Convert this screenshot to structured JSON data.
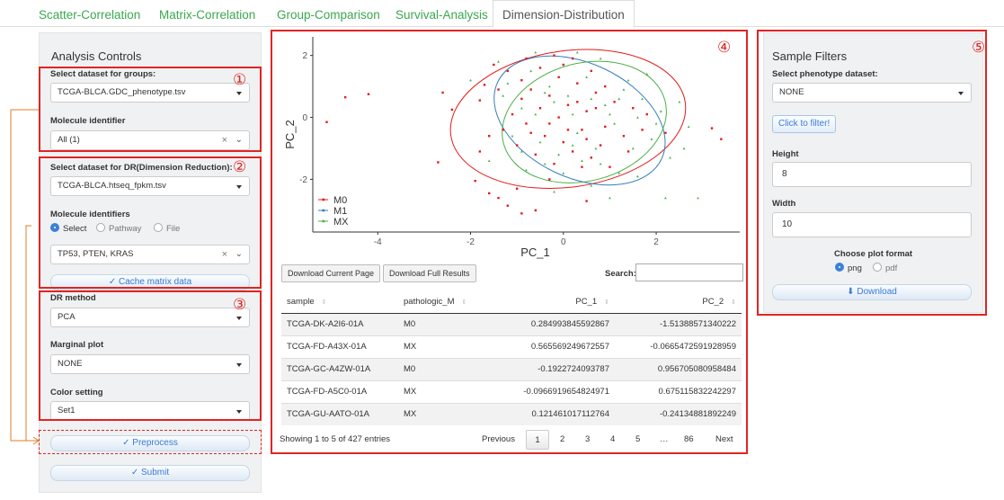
{
  "tabs": [
    {
      "label": "Scatter-Correlation",
      "active": false
    },
    {
      "label": "Matrix-Correlation",
      "active": false
    },
    {
      "label": "Group-Comparison",
      "active": false
    },
    {
      "label": "Survival-Analysis",
      "active": false
    },
    {
      "label": "Dimension-Distribution",
      "active": true
    }
  ],
  "sidebar": {
    "title": "Analysis Controls",
    "group_dataset_label": "Select dataset for groups:",
    "group_dataset_value": "TCGA-BLCA.GDC_phenotype.tsv",
    "molecule_identifier_label": "Molecule identifier",
    "molecule_identifier_value": "All (1)",
    "dr_dataset_label": "Select dataset for DR(Dimension Reduction):",
    "dr_dataset_value": "TCGA-BLCA.htseq_fpkm.tsv",
    "molecule_identifiers_label": "Molecule identifiers",
    "radio_options": [
      "Select",
      "Pathway",
      "File"
    ],
    "radio_selected": "Select",
    "molecules_value": "TP53, PTEN, KRAS",
    "cache_button": "Cache matrix data",
    "dr_method_label": "DR method",
    "dr_method_value": "PCA",
    "marginal_label": "Marginal plot",
    "marginal_value": "NONE",
    "color_label": "Color setting",
    "color_value": "Set1",
    "preprocess_button": "Preprocess",
    "submit_button": "Submit"
  },
  "markers": [
    "①",
    "②",
    "③",
    "④",
    "⑤"
  ],
  "icons": {
    "clear": "×",
    "chevron": "⌄",
    "check": "✓",
    "download": "⬇"
  },
  "chart_data": {
    "type": "scatter",
    "xlabel": "PC_1",
    "ylabel": "PC_2",
    "xticks": [
      -4,
      -2,
      0,
      2
    ],
    "yticks": [
      -2,
      0,
      2
    ],
    "xlim": [
      -5.4,
      3.8
    ],
    "ylim": [
      -3.7,
      2.6
    ],
    "legend_position": "bottom-left",
    "series": [
      {
        "name": "M0",
        "color": "#e41a1c",
        "points": [
          [
            -5.1,
            -0.15
          ],
          [
            -4.7,
            0.65
          ],
          [
            -4.2,
            0.75
          ],
          [
            -2.6,
            0.8
          ],
          [
            -2.7,
            -1.45
          ],
          [
            -2.4,
            0.25
          ],
          [
            -1.8,
            0.55
          ],
          [
            -1.7,
            1.05
          ],
          [
            -1.9,
            -2.05
          ],
          [
            -1.6,
            -2.45
          ],
          [
            -1.4,
            -2.6
          ],
          [
            -1.2,
            -2.85
          ],
          [
            -1.0,
            -2.3
          ],
          [
            -0.9,
            -3.1
          ],
          [
            -0.6,
            -3.0
          ],
          [
            -0.3,
            -2.0
          ],
          [
            0.4,
            -1.6
          ],
          [
            0.5,
            -2.7
          ],
          [
            1.4,
            -1.1
          ],
          [
            1.8,
            0.1
          ],
          [
            2.2,
            -0.5
          ],
          [
            3.2,
            -0.35
          ],
          [
            3.4,
            -0.7
          ],
          [
            -1.5,
            1.7
          ],
          [
            -1.2,
            1.5
          ],
          [
            -0.9,
            1.2
          ],
          [
            -0.7,
            0.9
          ],
          [
            -0.5,
            1.6
          ],
          [
            -0.3,
            0.7
          ],
          [
            -0.1,
            1.3
          ],
          [
            0.1,
            0.4
          ],
          [
            0.3,
            1.1
          ],
          [
            0.5,
            0.2
          ],
          [
            0.7,
            0.8
          ],
          [
            0.9,
            -0.3
          ],
          [
            1.1,
            0.5
          ],
          [
            1.3,
            -0.6
          ],
          [
            -1.3,
            -0.4
          ],
          [
            -1.0,
            -0.9
          ],
          [
            -0.8,
            -0.2
          ],
          [
            -0.6,
            -1.2
          ],
          [
            -0.4,
            -0.6
          ],
          [
            -0.2,
            -1.5
          ],
          [
            0.0,
            -0.8
          ],
          [
            0.2,
            -1.1
          ],
          [
            0.4,
            -0.4
          ],
          [
            0.6,
            -1.3
          ],
          [
            0.8,
            -0.9
          ],
          [
            1.0,
            -1.6
          ],
          [
            -1.1,
            0.1
          ],
          [
            -0.9,
            0.6
          ],
          [
            -0.7,
            -0.5
          ],
          [
            -0.5,
            0.3
          ],
          [
            -0.3,
            -0.2
          ],
          [
            -0.1,
            0.0
          ],
          [
            0.1,
            -0.4
          ],
          [
            0.3,
            0.5
          ],
          [
            0.5,
            -0.7
          ],
          [
            0.7,
            0.3
          ],
          [
            0.9,
            1.0
          ],
          [
            1.5,
            0.3
          ],
          [
            1.7,
            -0.4
          ],
          [
            -1.4,
            0.9
          ],
          [
            -1.6,
            -0.6
          ],
          [
            -1.8,
            -1.1
          ],
          [
            0.0,
            1.7
          ],
          [
            0.2,
            1.9
          ],
          [
            -0.2,
            2.0
          ],
          [
            0.6,
            1.5
          ],
          [
            -0.8,
            1.9
          ]
        ]
      },
      {
        "name": "M1",
        "color": "#377eb8",
        "points": []
      },
      {
        "name": "MX",
        "color": "#4daf4a",
        "points": [
          [
            -2.0,
            1.2
          ],
          [
            -1.4,
            1.8
          ],
          [
            -1.1,
            -0.6
          ],
          [
            -0.9,
            0.3
          ],
          [
            -0.7,
            1.5
          ],
          [
            -0.5,
            -0.8
          ],
          [
            -0.3,
            1.0
          ],
          [
            -0.1,
            -1.2
          ],
          [
            0.1,
            0.7
          ],
          [
            0.3,
            -0.5
          ],
          [
            0.5,
            1.3
          ],
          [
            0.7,
            -1.0
          ],
          [
            0.9,
            0.4
          ],
          [
            1.1,
            -0.2
          ],
          [
            1.3,
            0.9
          ],
          [
            1.5,
            -1.0
          ],
          [
            1.7,
            0.6
          ],
          [
            1.9,
            -0.7
          ],
          [
            2.1,
            0.2
          ],
          [
            2.3,
            -1.3
          ],
          [
            2.5,
            0.5
          ],
          [
            2.7,
            -0.3
          ],
          [
            -1.6,
            -1.4
          ],
          [
            -1.3,
            0.7
          ],
          [
            -0.8,
            -1.7
          ],
          [
            -0.6,
            0.1
          ],
          [
            -0.4,
            -1.5
          ],
          [
            -0.2,
            0.5
          ],
          [
            0.0,
            -1.8
          ],
          [
            0.2,
            0.1
          ],
          [
            0.4,
            -1.4
          ],
          [
            0.6,
            0.6
          ],
          [
            0.8,
            -1.5
          ],
          [
            1.0,
            0.1
          ],
          [
            1.2,
            -1.8
          ],
          [
            1.4,
            1.2
          ],
          [
            1.6,
            -1.9
          ],
          [
            1.8,
            1.4
          ],
          [
            0.3,
            2.1
          ],
          [
            -0.6,
            2.1
          ],
          [
            0.8,
            1.9
          ],
          [
            -0.2,
            -2.4
          ],
          [
            0.6,
            -2.2
          ],
          [
            1.0,
            -2.6
          ],
          [
            2.2,
            -2.6
          ],
          [
            2.9,
            -2.6
          ],
          [
            -1.2,
            1.1
          ],
          [
            -0.9,
            -1.1
          ],
          [
            2.0,
            -0.2
          ],
          [
            1.6,
            0.0
          ],
          [
            2.6,
            -1.0
          ],
          [
            -0.4,
            0.8
          ],
          [
            0.2,
            -0.9
          ],
          [
            1.2,
            0.6
          ]
        ]
      }
    ],
    "ellipses": [
      {
        "series": "M0",
        "cx": 0.1,
        "cy": -0.05,
        "rx": 2.55,
        "ry": 2.2,
        "rot_deg": -8
      },
      {
        "series": "M1",
        "cx": 0.35,
        "cy": -0.1,
        "rx": 1.95,
        "ry": 1.85,
        "rot_deg": 25
      },
      {
        "series": "MX",
        "cx": 0.45,
        "cy": -0.15,
        "rx": 1.8,
        "ry": 1.9,
        "rot_deg": -15
      }
    ]
  },
  "table": {
    "download_current": "Download Current Page",
    "download_full": "Download Full Results",
    "search_label": "Search:",
    "search_value": "",
    "columns": [
      "sample",
      "pathologic_M",
      "PC_1",
      "PC_2"
    ],
    "rows": [
      [
        "TCGA-DK-A2I6-01A",
        "M0",
        "0.284993845592867",
        "-1.51388571340222"
      ],
      [
        "TCGA-FD-A43X-01A",
        "MX",
        "0.565569249672557",
        "-0.0665472591928959"
      ],
      [
        "TCGA-GC-A4ZW-01A",
        "M0",
        "-0.1922724093787",
        "0.956705080958484"
      ],
      [
        "TCGA-FD-A5C0-01A",
        "MX",
        "-0.0966919654824971",
        "0.675115832242297"
      ],
      [
        "TCGA-GU-AATO-01A",
        "MX",
        "0.121461017112764",
        "-0.24134881892249"
      ]
    ],
    "info": "Showing 1 to 5 of 427 entries",
    "pager": {
      "previous": "Previous",
      "pages": [
        "1",
        "2",
        "3",
        "4",
        "5",
        "…",
        "86"
      ],
      "current": "1",
      "next": "Next"
    }
  },
  "filters": {
    "title": "Sample Filters",
    "phenotype_label": "Select phenotype dataset:",
    "phenotype_value": "NONE",
    "filter_button": "Click to filter!",
    "height_label": "Height",
    "height_value": "8",
    "width_label": "Width",
    "width_value": "10",
    "format_label": "Choose plot format",
    "formats": [
      "png",
      "pdf"
    ],
    "format_selected": "png",
    "download_button": "Download"
  }
}
